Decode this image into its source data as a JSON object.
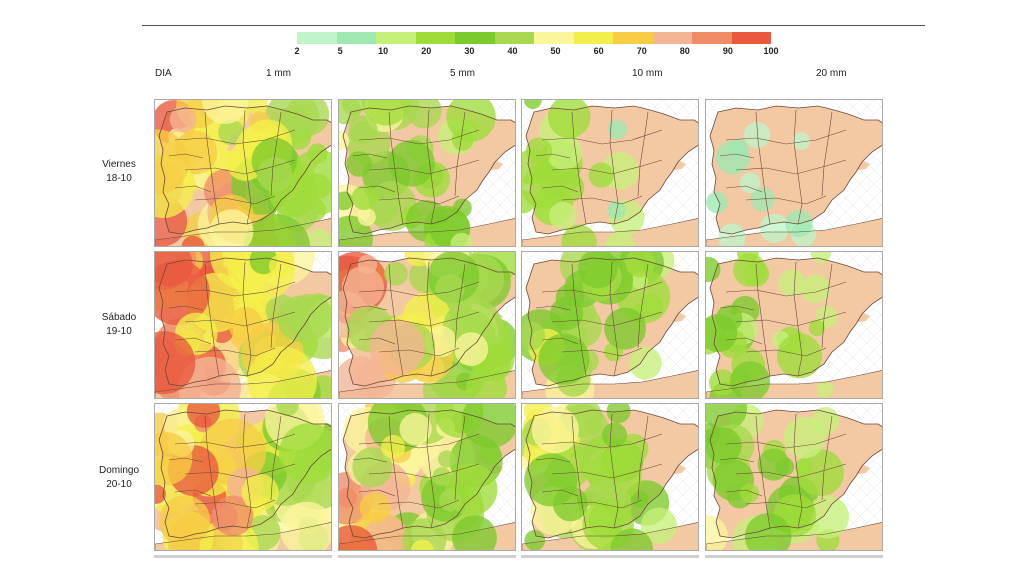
{
  "legend": {
    "labels": [
      "2",
      "5",
      "10",
      "20",
      "30",
      "40",
      "50",
      "60",
      "70",
      "80",
      "90",
      "100"
    ],
    "colors": [
      "#bff5c9",
      "#9ee8b1",
      "#c6f07a",
      "#9fdc3a",
      "#7ccb2c",
      "#a8d850",
      "#fbf59c",
      "#f3ef4a",
      "#f6cd45",
      "#f4b595",
      "#ef8c68",
      "#e9593e"
    ]
  },
  "columns": {
    "day_label": "DIA",
    "thresholds": [
      "1 mm",
      "5 mm",
      "10 mm",
      "20 mm"
    ]
  },
  "rows": [
    {
      "day": "Viernes",
      "date": "18-10",
      "levels": [
        0.85,
        0.45,
        0.25,
        0.05
      ]
    },
    {
      "day": "Sábado",
      "date": "19-10",
      "levels": [
        0.95,
        0.75,
        0.5,
        0.3
      ]
    },
    {
      "day": "Domingo",
      "date": "20-10",
      "levels": [
        0.9,
        0.7,
        0.5,
        0.35
      ]
    }
  ],
  "map_colors": {
    "land": "#f2c9a2",
    "sea": "#ffffff",
    "border": "#6b4a3a"
  }
}
